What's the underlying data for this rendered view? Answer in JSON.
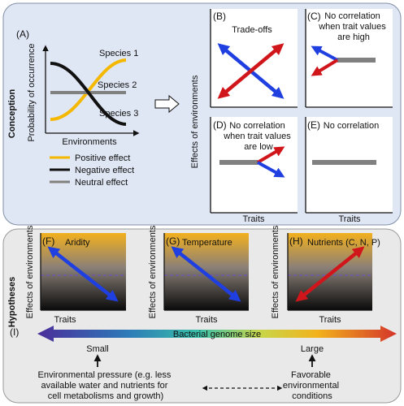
{
  "section_top_label": "Conception",
  "section_bottom_label": "Hypotheses",
  "panelA": {
    "letter": "(A)",
    "ylabel": "Probability of occurrence",
    "xlabel": "Environments",
    "species": [
      "Species 1",
      "Species 2",
      "Species 3"
    ],
    "legend": [
      {
        "label": "Positive effect",
        "color": "#f5b800"
      },
      {
        "label": "Negative effect",
        "color": "#111111"
      },
      {
        "label": "Neutral effect",
        "color": "#808080"
      }
    ]
  },
  "grid": {
    "ylabel": "Effects of environments",
    "xlabel": "Traits",
    "B": {
      "letter": "(B)",
      "title": "Trade-offs"
    },
    "C": {
      "letter": "(C)",
      "title_lines": [
        "No correlation",
        "when trait values",
        "are high"
      ]
    },
    "D": {
      "letter": "(D)",
      "title_lines": [
        "No correlation",
        "when trait values",
        "are low"
      ]
    },
    "E": {
      "letter": "(E)",
      "title": "No correlation"
    }
  },
  "hypotheses": {
    "F": {
      "letter": "(F)",
      "title": "Aridity",
      "ylabel": "Effects of environments",
      "xlabel": "Traits"
    },
    "G": {
      "letter": "(G)",
      "title": "Temperature",
      "ylabel": "Effects of environments",
      "xlabel": "Traits"
    },
    "H": {
      "letter": "(H)",
      "title": "Nutrients (C, N, P)",
      "ylabel": "Effects of environments",
      "xlabel": "Traits"
    }
  },
  "gradient": {
    "letter": "(I)",
    "label": "Bacterial genome size",
    "small": "Small",
    "large": "Large",
    "left_text": [
      "Environmental pressure (e.g. less",
      "available water and nutrients for",
      "cell metabolisms and growth)"
    ],
    "right_text": [
      "Favorable",
      "environmental",
      "conditions"
    ]
  },
  "colors": {
    "blue": "#1f3fe0",
    "red": "#d0161b",
    "yellow": "#f5b800",
    "gray": "#808080",
    "panel_bg": "#dfe6f4",
    "bottom_bg": "#e9e9e9"
  }
}
